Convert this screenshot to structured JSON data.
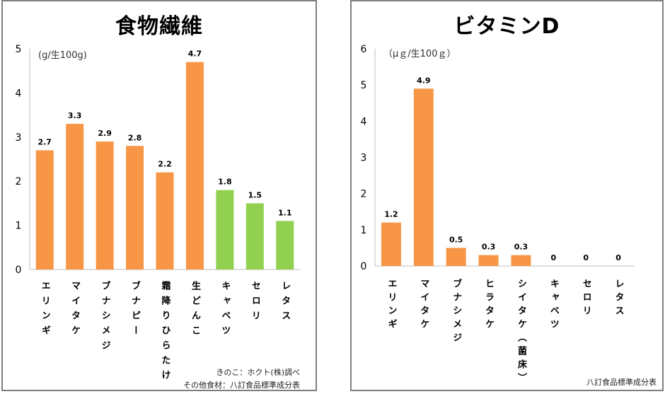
{
  "charts": {
    "fiber": {
      "source_lines": [
        "きのこ：ホクト(株)調べ",
        "その他食材：八訂食品標準成分表"
      ]
    },
    "vitd": {
      "source_lines": [
        "八訂食品標準成分表"
      ]
    }
  },
  "colors": {
    "orange": "#F79646",
    "green": "#92D050",
    "axis": "#bfbfbf"
  },
  "chart_data": [
    {
      "type": "bar",
      "title": "食物繊維",
      "unit_label": "(g/生100g)",
      "categories": [
        "エリンギ",
        "マイタケ",
        "ブナシメジ",
        "ブナピー",
        "霜降りひらたけ",
        "生どんこ",
        "キャベツ",
        "セロリ",
        "レタス"
      ],
      "values": [
        2.7,
        3.3,
        2.9,
        2.8,
        2.2,
        4.7,
        1.8,
        1.5,
        1.1
      ],
      "value_labels": [
        "2.7",
        "3.3",
        "2.9",
        "2.8",
        "2.2",
        "4.7",
        "1.8",
        "1.5",
        "1.1"
      ],
      "bar_colors": [
        "orange",
        "orange",
        "orange",
        "orange",
        "orange",
        "orange",
        "green",
        "green",
        "green"
      ],
      "ylim": [
        0,
        5
      ],
      "yticks": [
        0,
        1,
        2,
        3,
        4,
        5
      ],
      "grid": false,
      "legend": "none"
    },
    {
      "type": "bar",
      "title": "ビタミンD",
      "unit_label": "（μｇ/生100ｇ）",
      "categories": [
        "エリンギ",
        "マイタケ",
        "ブナシメジ",
        "ヒラタケ",
        "シイタケ（菌床）",
        "キャベツ",
        "セロリ",
        "レタス"
      ],
      "values": [
        1.2,
        4.9,
        0.5,
        0.3,
        0.3,
        0,
        0,
        0
      ],
      "value_labels": [
        "1.2",
        "4.9",
        "0.5",
        "0.3",
        "0.3",
        "0",
        "0",
        "0"
      ],
      "bar_colors": [
        "orange",
        "orange",
        "orange",
        "orange",
        "orange",
        "orange",
        "orange",
        "orange"
      ],
      "ylim": [
        0,
        6
      ],
      "yticks": [
        0,
        1,
        2,
        3,
        4,
        5,
        6
      ],
      "grid": false,
      "legend": "none"
    }
  ]
}
